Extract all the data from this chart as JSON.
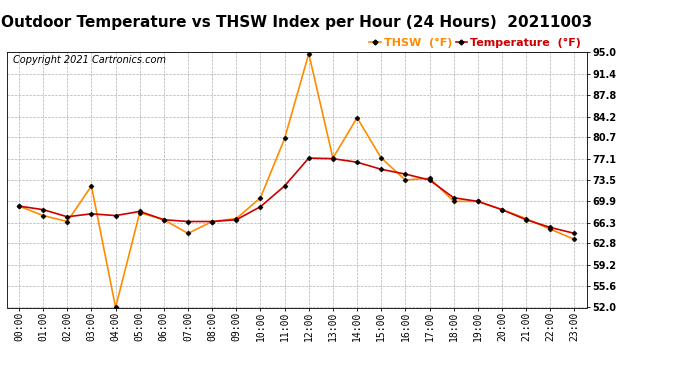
{
  "title": "Outdoor Temperature vs THSW Index per Hour (24 Hours)  20211003",
  "copyright": "Copyright 2021 Cartronics.com",
  "legend_thsw": "THSW  (°F)",
  "legend_temp": "Temperature  (°F)",
  "hours": [
    "00:00",
    "01:00",
    "02:00",
    "03:00",
    "04:00",
    "05:00",
    "06:00",
    "07:00",
    "08:00",
    "09:00",
    "10:00",
    "11:00",
    "12:00",
    "13:00",
    "14:00",
    "15:00",
    "16:00",
    "17:00",
    "18:00",
    "19:00",
    "20:00",
    "21:00",
    "22:00",
    "23:00"
  ],
  "temperature": [
    69.1,
    68.5,
    67.3,
    67.8,
    67.5,
    68.2,
    66.8,
    66.5,
    66.5,
    66.8,
    69.0,
    72.5,
    77.2,
    77.1,
    76.5,
    75.3,
    74.5,
    73.5,
    70.5,
    69.9,
    68.5,
    66.8,
    65.5,
    64.5
  ],
  "thsw": [
    69.1,
    67.5,
    66.5,
    72.5,
    52.0,
    68.0,
    66.8,
    64.5,
    66.5,
    67.0,
    70.5,
    80.5,
    94.8,
    77.2,
    84.0,
    77.2,
    73.5,
    73.8,
    69.9,
    69.9,
    68.5,
    67.0,
    65.2,
    63.5
  ],
  "thsw_color": "#FF8C00",
  "temp_color": "#CC0000",
  "marker_color": "black",
  "background_color": "#ffffff",
  "ylim_min": 52.0,
  "ylim_max": 95.0,
  "yticks": [
    52.0,
    55.6,
    59.2,
    62.8,
    66.3,
    69.9,
    73.5,
    77.1,
    80.7,
    84.2,
    87.8,
    91.4,
    95.0
  ],
  "grid_color": "#b0b0b0",
  "title_fontsize": 11,
  "copyright_fontsize": 7,
  "legend_fontsize": 8,
  "tick_fontsize": 7
}
